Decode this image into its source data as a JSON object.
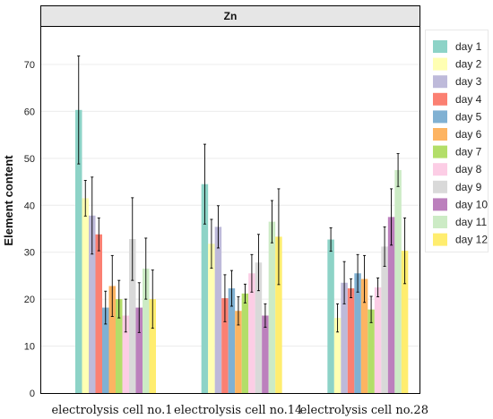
{
  "chart_data": {
    "type": "bar",
    "title": "Zn",
    "xlabel": "",
    "ylabel": "Element content",
    "ylim": [
      0,
      78
    ],
    "yticks": [
      0,
      10,
      20,
      30,
      40,
      50,
      60,
      70
    ],
    "grid": true,
    "legend_position": "right",
    "categories": [
      "electrolysis cell no.1",
      "electrolysis cell no.14",
      "electrolysis cell no.28"
    ],
    "series": [
      {
        "name": "day 1",
        "color": "#8dd3c7",
        "values": [
          60.3,
          44.5,
          32.7
        ],
        "errors": [
          11.5,
          8.5,
          2.5
        ]
      },
      {
        "name": "day 2",
        "color": "#ffffb3",
        "values": [
          41.5,
          31.8,
          16.0
        ],
        "errors": [
          3.8,
          5.2,
          3.0
        ]
      },
      {
        "name": "day 3",
        "color": "#bebada",
        "values": [
          37.8,
          35.4,
          23.5
        ],
        "errors": [
          8.2,
          4.5,
          4.5
        ]
      },
      {
        "name": "day 4",
        "color": "#fb8072",
        "values": [
          33.8,
          20.2,
          22.3
        ],
        "errors": [
          3.5,
          5.0,
          2.0
        ]
      },
      {
        "name": "day 5",
        "color": "#80b1d3",
        "values": [
          18.2,
          22.3,
          25.5
        ],
        "errors": [
          3.5,
          3.8,
          4.0
        ]
      },
      {
        "name": "day 6",
        "color": "#fdb462",
        "values": [
          22.8,
          17.5,
          24.3
        ],
        "errors": [
          6.5,
          3.0,
          5.0
        ]
      },
      {
        "name": "day 7",
        "color": "#b3de69",
        "values": [
          20.0,
          21.2,
          17.8
        ],
        "errors": [
          4.0,
          2.0,
          2.8
        ]
      },
      {
        "name": "day 8",
        "color": "#fccde5",
        "values": [
          16.5,
          25.5,
          22.5
        ],
        "errors": [
          3.5,
          4.0,
          2.0
        ]
      },
      {
        "name": "day 9",
        "color": "#d9d9d9",
        "values": [
          32.8,
          27.8,
          31.2
        ],
        "errors": [
          8.8,
          6.0,
          4.2
        ]
      },
      {
        "name": "day 10",
        "color": "#bc80bd",
        "values": [
          18.2,
          16.5,
          37.5
        ],
        "errors": [
          5.3,
          2.5,
          6.0
        ]
      },
      {
        "name": "day 11",
        "color": "#ccebc5",
        "values": [
          26.5,
          36.5,
          47.5
        ],
        "errors": [
          6.5,
          4.5,
          3.5
        ]
      },
      {
        "name": "day 12",
        "color": "#ffed6f",
        "values": [
          20.0,
          33.3,
          30.3
        ],
        "errors": [
          6.2,
          10.2,
          7.0
        ]
      }
    ]
  }
}
